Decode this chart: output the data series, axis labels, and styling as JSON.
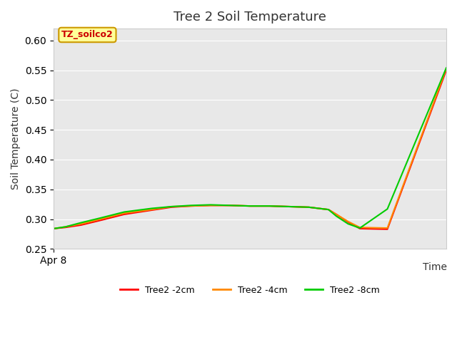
{
  "title": "Tree 2 Soil Temperature",
  "xlabel": "Time",
  "ylabel": "Soil Temperature (C)",
  "xlim": [
    0,
    1
  ],
  "ylim": [
    0.25,
    0.62
  ],
  "yticks": [
    0.25,
    0.3,
    0.35,
    0.4,
    0.45,
    0.5,
    0.55,
    0.6
  ],
  "x_tick_label": "Apr 8",
  "x_tick_pos": 0.0,
  "legend_label": "TZ_soilco2",
  "legend_box_color": "#ffff99",
  "legend_box_border": "#cc9900",
  "legend_text_color": "#cc0000",
  "bg_color": "#e8e8e8",
  "series": {
    "Tree2 -2cm": {
      "color": "#ff0000",
      "x": [
        0.0,
        0.03,
        0.07,
        0.12,
        0.18,
        0.25,
        0.3,
        0.35,
        0.4,
        0.45,
        0.5,
        0.55,
        0.6,
        0.65,
        0.7,
        0.72,
        0.75,
        0.78,
        0.85,
        1.0
      ],
      "y": [
        0.284,
        0.286,
        0.29,
        0.298,
        0.308,
        0.315,
        0.32,
        0.322,
        0.323,
        0.323,
        0.322,
        0.322,
        0.321,
        0.32,
        0.316,
        0.308,
        0.295,
        0.284,
        0.283,
        0.55
      ]
    },
    "Tree2 -4cm": {
      "color": "#ff8800",
      "x": [
        0.0,
        0.03,
        0.07,
        0.12,
        0.18,
        0.25,
        0.3,
        0.35,
        0.4,
        0.45,
        0.5,
        0.55,
        0.6,
        0.65,
        0.7,
        0.72,
        0.75,
        0.78,
        0.85,
        1.0
      ],
      "y": [
        0.284,
        0.287,
        0.292,
        0.3,
        0.31,
        0.316,
        0.321,
        0.322,
        0.323,
        0.323,
        0.322,
        0.322,
        0.321,
        0.32,
        0.316,
        0.308,
        0.296,
        0.286,
        0.285,
        0.553
      ]
    },
    "Tree2 -8cm": {
      "color": "#00cc00",
      "x": [
        0.0,
        0.03,
        0.07,
        0.12,
        0.18,
        0.25,
        0.3,
        0.35,
        0.4,
        0.45,
        0.5,
        0.55,
        0.6,
        0.65,
        0.7,
        0.72,
        0.75,
        0.78,
        0.85,
        1.0
      ],
      "y": [
        0.284,
        0.287,
        0.294,
        0.302,
        0.312,
        0.318,
        0.321,
        0.323,
        0.324,
        0.323,
        0.322,
        0.322,
        0.321,
        0.32,
        0.316,
        0.305,
        0.292,
        0.285,
        0.317,
        0.554
      ]
    }
  }
}
